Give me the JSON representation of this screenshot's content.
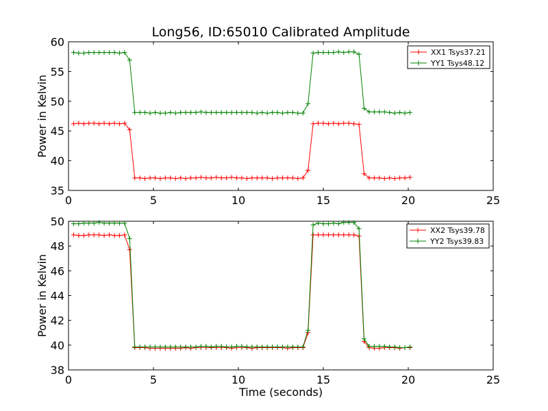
{
  "figure_title": "Long56, ID:65010 Calibrated Amplitude",
  "chart_data": [
    {
      "type": "line",
      "title": "Long56, ID:65010 Calibrated Amplitude",
      "xlabel": "",
      "ylabel": "Power in Kelvin",
      "xlim": [
        0,
        25
      ],
      "ylim": [
        35,
        60
      ],
      "xticks": [
        0,
        5,
        10,
        15,
        20,
        25
      ],
      "yticks": [
        35,
        40,
        45,
        50,
        55,
        60
      ],
      "legend_position": "top-right",
      "series": [
        {
          "name": "XX1 Tsys37.21",
          "color": "#ff0000",
          "x": [
            0.3,
            0.6,
            0.9,
            1.2,
            1.5,
            1.8,
            2.1,
            2.4,
            2.7,
            3.0,
            3.3,
            3.6,
            3.9,
            4.2,
            4.5,
            4.8,
            5.1,
            5.4,
            5.7,
            6.0,
            6.3,
            6.6,
            6.9,
            7.2,
            7.5,
            7.8,
            8.1,
            8.4,
            8.7,
            9.0,
            9.3,
            9.6,
            9.9,
            10.2,
            10.5,
            10.8,
            11.1,
            11.4,
            11.7,
            12.0,
            12.3,
            12.6,
            12.9,
            13.2,
            13.5,
            13.8,
            14.1,
            14.4,
            14.7,
            15.0,
            15.3,
            15.6,
            15.9,
            16.2,
            16.5,
            16.8,
            17.1,
            17.4,
            17.7,
            18.0,
            18.3,
            18.6,
            18.9,
            19.2,
            19.5,
            19.8,
            20.1
          ],
          "y": [
            46.2,
            46.3,
            46.2,
            46.3,
            46.3,
            46.2,
            46.3,
            46.2,
            46.3,
            46.2,
            46.3,
            45.2,
            37.1,
            37.1,
            37.0,
            37.1,
            37.1,
            37.0,
            37.1,
            37.1,
            37.0,
            37.1,
            37.0,
            37.1,
            37.1,
            37.2,
            37.1,
            37.1,
            37.2,
            37.1,
            37.1,
            37.2,
            37.1,
            37.1,
            37.0,
            37.1,
            37.1,
            37.1,
            37.1,
            37.0,
            37.1,
            37.1,
            37.1,
            37.1,
            37.0,
            37.1,
            38.4,
            46.2,
            46.3,
            46.3,
            46.2,
            46.3,
            46.2,
            46.3,
            46.3,
            46.2,
            46.1,
            37.8,
            37.1,
            37.1,
            37.1,
            37.0,
            37.1,
            37.0,
            37.1,
            37.1,
            37.2
          ]
        },
        {
          "name": "YY1 Tsys48.12",
          "color": "#008000",
          "x": [
            0.3,
            0.6,
            0.9,
            1.2,
            1.5,
            1.8,
            2.1,
            2.4,
            2.7,
            3.0,
            3.3,
            3.6,
            3.9,
            4.2,
            4.5,
            4.8,
            5.1,
            5.4,
            5.7,
            6.0,
            6.3,
            6.6,
            6.9,
            7.2,
            7.5,
            7.8,
            8.1,
            8.4,
            8.7,
            9.0,
            9.3,
            9.6,
            9.9,
            10.2,
            10.5,
            10.8,
            11.1,
            11.4,
            11.7,
            12.0,
            12.3,
            12.6,
            12.9,
            13.2,
            13.5,
            13.8,
            14.1,
            14.4,
            14.7,
            15.0,
            15.3,
            15.6,
            15.9,
            16.2,
            16.5,
            16.8,
            17.1,
            17.4,
            17.7,
            18.0,
            18.3,
            18.6,
            18.9,
            19.2,
            19.5,
            19.8,
            20.1
          ],
          "y": [
            58.2,
            58.1,
            58.1,
            58.2,
            58.2,
            58.2,
            58.2,
            58.2,
            58.2,
            58.1,
            58.2,
            56.9,
            48.1,
            48.1,
            48.1,
            48.0,
            48.1,
            48.0,
            48.0,
            48.1,
            48.0,
            48.1,
            48.1,
            48.1,
            48.1,
            48.2,
            48.1,
            48.1,
            48.1,
            48.1,
            48.1,
            48.1,
            48.1,
            48.1,
            48.1,
            48.1,
            48.0,
            48.1,
            48.0,
            48.1,
            48.1,
            48.0,
            48.1,
            48.1,
            48.0,
            48.0,
            49.6,
            58.1,
            58.2,
            58.2,
            58.2,
            58.2,
            58.3,
            58.2,
            58.3,
            58.3,
            57.9,
            48.8,
            48.2,
            48.2,
            48.2,
            48.2,
            48.1,
            48.0,
            48.1,
            48.0,
            48.1
          ]
        }
      ]
    },
    {
      "type": "line",
      "title": "",
      "xlabel": "Time (seconds)",
      "ylabel": "Power in Kelvin",
      "xlim": [
        0,
        25
      ],
      "ylim": [
        38,
        50
      ],
      "xticks": [
        0,
        5,
        10,
        15,
        20,
        25
      ],
      "yticks": [
        38,
        40,
        42,
        44,
        46,
        48,
        50
      ],
      "legend_position": "top-right",
      "series": [
        {
          "name": "XX2 Tsys39.78",
          "color": "#ff0000",
          "x": [
            0.3,
            0.6,
            0.9,
            1.2,
            1.5,
            1.8,
            2.1,
            2.4,
            2.7,
            3.0,
            3.3,
            3.6,
            3.9,
            4.2,
            4.5,
            4.8,
            5.1,
            5.4,
            5.7,
            6.0,
            6.3,
            6.6,
            6.9,
            7.2,
            7.5,
            7.8,
            8.1,
            8.4,
            8.7,
            9.0,
            9.3,
            9.6,
            9.9,
            10.2,
            10.5,
            10.8,
            11.1,
            11.4,
            11.7,
            12.0,
            12.3,
            12.6,
            12.9,
            13.2,
            13.5,
            13.8,
            14.1,
            14.4,
            14.7,
            15.0,
            15.3,
            15.6,
            15.9,
            16.2,
            16.5,
            16.8,
            17.1,
            17.4,
            17.7,
            18.0,
            18.3,
            18.6,
            18.9,
            19.2,
            19.5,
            19.8,
            20.1
          ],
          "y": [
            48.9,
            48.85,
            48.85,
            48.9,
            48.9,
            48.9,
            48.85,
            48.9,
            48.85,
            48.85,
            48.9,
            47.7,
            39.8,
            39.8,
            39.8,
            39.75,
            39.75,
            39.75,
            39.75,
            39.75,
            39.75,
            39.75,
            39.8,
            39.75,
            39.8,
            39.8,
            39.8,
            39.8,
            39.8,
            39.8,
            39.8,
            39.75,
            39.8,
            39.8,
            39.8,
            39.75,
            39.8,
            39.8,
            39.8,
            39.8,
            39.8,
            39.8,
            39.75,
            39.8,
            39.8,
            39.8,
            41.0,
            48.9,
            48.9,
            48.9,
            48.9,
            48.9,
            48.9,
            48.9,
            48.9,
            48.9,
            48.8,
            40.3,
            39.8,
            39.75,
            39.75,
            39.8,
            39.8,
            39.8,
            39.75,
            39.8,
            39.8
          ]
        },
        {
          "name": "YY2 Tsys39.83",
          "color": "#008000",
          "x": [
            0.3,
            0.6,
            0.9,
            1.2,
            1.5,
            1.8,
            2.1,
            2.4,
            2.7,
            3.0,
            3.3,
            3.6,
            3.9,
            4.2,
            4.5,
            4.8,
            5.1,
            5.4,
            5.7,
            6.0,
            6.3,
            6.6,
            6.9,
            7.2,
            7.5,
            7.8,
            8.1,
            8.4,
            8.7,
            9.0,
            9.3,
            9.6,
            9.9,
            10.2,
            10.5,
            10.8,
            11.1,
            11.4,
            11.7,
            12.0,
            12.3,
            12.6,
            12.9,
            13.2,
            13.5,
            13.8,
            14.1,
            14.4,
            14.7,
            15.0,
            15.3,
            15.6,
            15.9,
            16.2,
            16.5,
            16.8,
            17.1,
            17.4,
            17.7,
            18.0,
            18.3,
            18.6,
            18.9,
            19.2,
            19.5,
            19.8,
            20.1
          ],
          "y": [
            49.8,
            49.8,
            49.85,
            49.85,
            49.85,
            49.9,
            49.85,
            49.85,
            49.85,
            49.85,
            49.85,
            48.6,
            39.85,
            39.85,
            39.85,
            39.85,
            39.85,
            39.85,
            39.85,
            39.85,
            39.85,
            39.85,
            39.85,
            39.85,
            39.85,
            39.9,
            39.9,
            39.85,
            39.9,
            39.9,
            39.85,
            39.85,
            39.9,
            39.9,
            39.85,
            39.85,
            39.85,
            39.85,
            39.85,
            39.85,
            39.85,
            39.85,
            39.85,
            39.85,
            39.85,
            39.85,
            41.2,
            49.7,
            49.85,
            49.8,
            49.8,
            49.85,
            49.8,
            49.9,
            49.9,
            49.9,
            49.4,
            40.5,
            39.9,
            39.9,
            39.9,
            39.9,
            39.85,
            39.85,
            39.8,
            39.8,
            39.85
          ]
        }
      ]
    }
  ]
}
